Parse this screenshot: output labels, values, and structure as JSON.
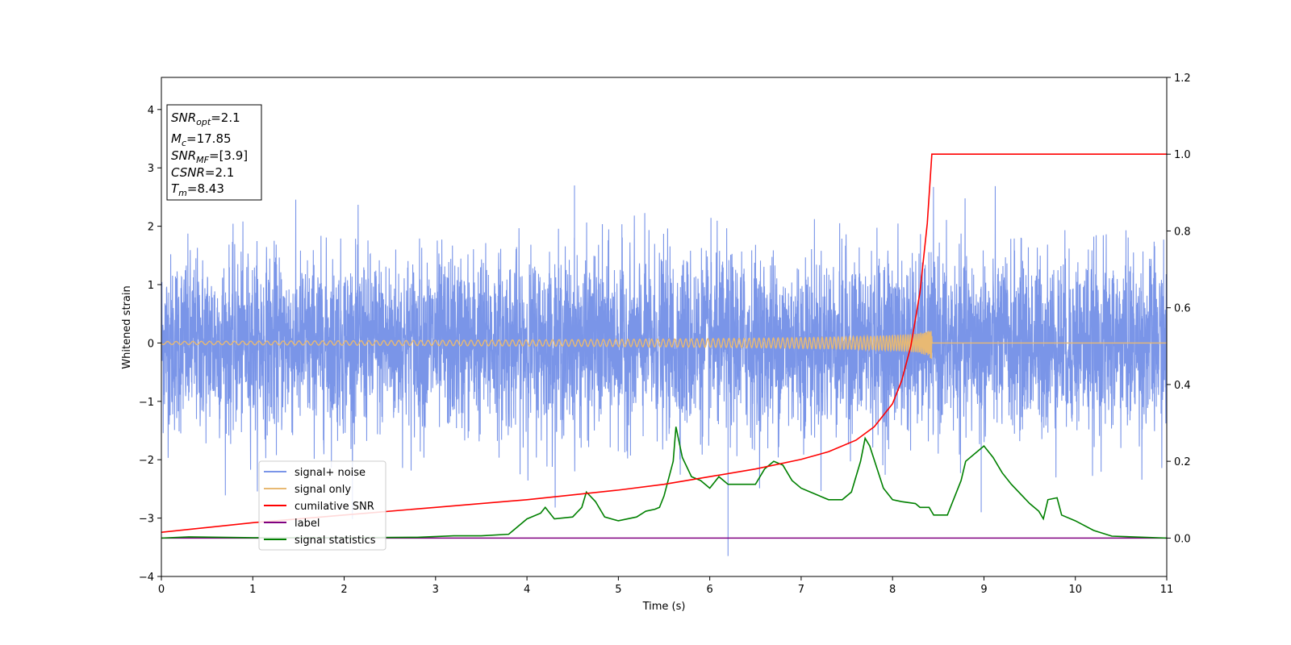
{
  "chart_data": {
    "type": "line",
    "xlabel": "Time (s)",
    "ylabel": "Whitened strain",
    "xlim": [
      0,
      11
    ],
    "ylim_left": [
      -4,
      4.55
    ],
    "ylim_right": [
      -0.1,
      1.2
    ],
    "x_ticks": [
      0,
      1,
      2,
      3,
      4,
      5,
      6,
      7,
      8,
      9,
      10,
      11
    ],
    "y_ticks_left": [
      -4,
      -3,
      -2,
      -1,
      0,
      1,
      2,
      3,
      4
    ],
    "y_ticks_right": [
      0.0,
      0.2,
      0.4,
      0.6,
      0.8,
      1.0,
      1.2
    ],
    "grid": false,
    "legend_position": "lower-left",
    "annotation": [
      {
        "main": "SNR",
        "sub": "opt",
        "rest": "=2.1"
      },
      {
        "main": "M",
        "sub": "c",
        "rest": "=17.85"
      },
      {
        "main": "SNR",
        "sub": "MF",
        "rest": "=[3.9]"
      },
      {
        "main": "CSNR",
        "sub": "",
        "rest": "=2.1"
      },
      {
        "main": "T",
        "sub": "m",
        "rest": "=8.43"
      }
    ],
    "series": [
      {
        "name": "signal+ noise",
        "axis": "left",
        "color": "#7a95e8",
        "noise_std": 0.75,
        "range": [
          -3.65,
          2.75
        ]
      },
      {
        "name": "signal only",
        "axis": "left",
        "color": "#e8b973",
        "merger_time": 8.43,
        "peak_amplitude": 0.3
      },
      {
        "name": "cumilative SNR",
        "axis": "right",
        "color": "#ff0000",
        "x": [
          0,
          1,
          2,
          3,
          4,
          5,
          5.5,
          6,
          6.5,
          7,
          7.3,
          7.6,
          7.8,
          8.0,
          8.1,
          8.2,
          8.3,
          8.38,
          8.43,
          11
        ],
        "y": [
          0.015,
          0.04,
          0.06,
          0.08,
          0.1,
          0.125,
          0.14,
          0.16,
          0.18,
          0.205,
          0.225,
          0.255,
          0.29,
          0.35,
          0.41,
          0.5,
          0.64,
          0.82,
          1.0,
          1.0
        ]
      },
      {
        "name": "label",
        "axis": "right",
        "color": "#800080",
        "x": [
          0,
          11
        ],
        "y": [
          0.0,
          0.0
        ]
      },
      {
        "name": "signal statistics",
        "axis": "right",
        "color": "#008000",
        "x": [
          0,
          0.3,
          1,
          2,
          2.8,
          3.2,
          3.5,
          3.8,
          4.0,
          4.15,
          4.2,
          4.3,
          4.5,
          4.6,
          4.65,
          4.75,
          4.85,
          5.0,
          5.2,
          5.3,
          5.4,
          5.45,
          5.5,
          5.6,
          5.63,
          5.7,
          5.8,
          5.9,
          6.0,
          6.1,
          6.2,
          6.3,
          6.5,
          6.6,
          6.7,
          6.8,
          6.9,
          7.0,
          7.1,
          7.2,
          7.3,
          7.45,
          7.55,
          7.65,
          7.7,
          7.75,
          7.9,
          8.0,
          8.1,
          8.25,
          8.3,
          8.4,
          8.45,
          8.6,
          8.75,
          8.8,
          8.9,
          9.0,
          9.1,
          9.2,
          9.3,
          9.5,
          9.6,
          9.65,
          9.7,
          9.8,
          9.85,
          10.0,
          10.2,
          10.4,
          11
        ],
        "y": [
          0.0,
          0.003,
          0.001,
          0.001,
          0.002,
          0.006,
          0.006,
          0.01,
          0.05,
          0.065,
          0.08,
          0.05,
          0.055,
          0.08,
          0.12,
          0.095,
          0.055,
          0.045,
          0.055,
          0.07,
          0.075,
          0.08,
          0.11,
          0.2,
          0.29,
          0.21,
          0.16,
          0.15,
          0.13,
          0.16,
          0.14,
          0.14,
          0.14,
          0.18,
          0.2,
          0.19,
          0.15,
          0.13,
          0.12,
          0.11,
          0.1,
          0.1,
          0.12,
          0.2,
          0.26,
          0.24,
          0.13,
          0.1,
          0.095,
          0.09,
          0.08,
          0.08,
          0.06,
          0.06,
          0.15,
          0.2,
          0.22,
          0.24,
          0.21,
          0.17,
          0.14,
          0.09,
          0.07,
          0.05,
          0.1,
          0.105,
          0.06,
          0.045,
          0.02,
          0.005,
          0.0
        ]
      }
    ]
  }
}
